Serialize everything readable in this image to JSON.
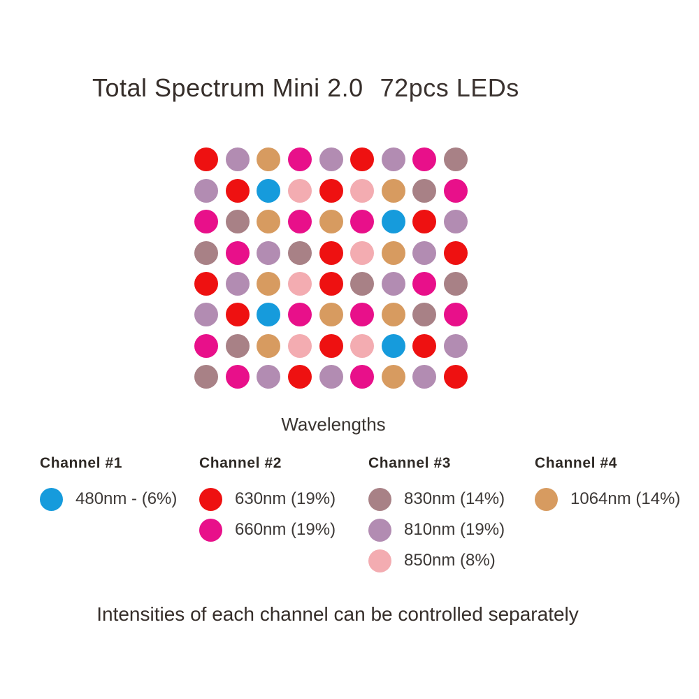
{
  "title": {
    "product": "Total Spectrum Mini 2.0",
    "leds": "72pcs LEDs"
  },
  "grid_label": "Wavelengths",
  "footer": "Intensities of each channel can be controlled separately",
  "colors": {
    "480": "#169bdc",
    "630": "#ee1111",
    "660": "#e8108a",
    "810": "#b28cb2",
    "830": "#a88186",
    "850": "#f3acb1",
    "1064": "#d79b60"
  },
  "led_grid": {
    "columns": 9,
    "rows_count": 8,
    "rows": [
      [
        "630",
        "810",
        "1064",
        "660",
        "810",
        "630",
        "810",
        "660",
        "830"
      ],
      [
        "810",
        "630",
        "480",
        "850",
        "630",
        "850",
        "1064",
        "830",
        "660"
      ],
      [
        "660",
        "830",
        "1064",
        "660",
        "1064",
        "660",
        "480",
        "630",
        "810"
      ],
      [
        "830",
        "660",
        "810",
        "830",
        "630",
        "850",
        "1064",
        "810",
        "630"
      ],
      [
        "630",
        "810",
        "1064",
        "850",
        "630",
        "830",
        "810",
        "660",
        "830"
      ],
      [
        "810",
        "630",
        "480",
        "660",
        "1064",
        "660",
        "1064",
        "830",
        "660"
      ],
      [
        "660",
        "830",
        "1064",
        "850",
        "630",
        "850",
        "480",
        "630",
        "810"
      ],
      [
        "830",
        "660",
        "810",
        "630",
        "810",
        "660",
        "1064",
        "810",
        "630"
      ]
    ]
  },
  "channels": [
    {
      "name": "Channel #1",
      "items": [
        {
          "wavelength": "480",
          "label": "480nm - (6%)"
        }
      ]
    },
    {
      "name": "Channel #2",
      "items": [
        {
          "wavelength": "630",
          "label": "630nm (19%)"
        },
        {
          "wavelength": "660",
          "label": "660nm (19%)"
        }
      ]
    },
    {
      "name": "Channel #3",
      "items": [
        {
          "wavelength": "830",
          "label": "830nm (14%)"
        },
        {
          "wavelength": "810",
          "label": "810nm (19%)"
        },
        {
          "wavelength": "850",
          "label": "850nm (8%)"
        }
      ]
    },
    {
      "name": "Channel #4",
      "items": [
        {
          "wavelength": "1064",
          "label": "1064nm (14%)"
        }
      ]
    }
  ]
}
